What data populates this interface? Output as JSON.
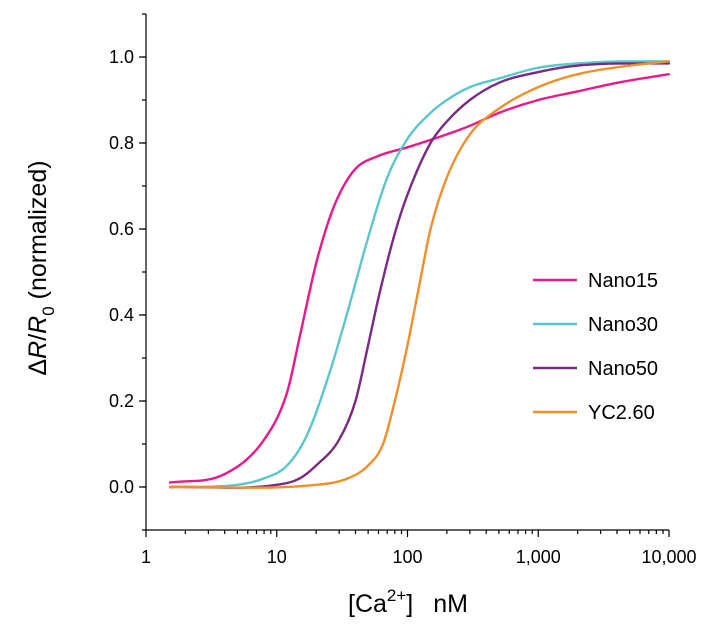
{
  "chart_data": {
    "type": "line",
    "title": "",
    "xscale": "log",
    "xlim": [
      1,
      10000
    ],
    "ylim": [
      -0.1,
      1.1
    ],
    "x_ticks": [
      {
        "value": 1,
        "label": "1"
      },
      {
        "value": 10,
        "label": "10"
      },
      {
        "value": 100,
        "label": "100"
      },
      {
        "value": 1000,
        "label": "1,000"
      },
      {
        "value": 10000,
        "label": "10,000"
      }
    ],
    "y_ticks": [
      {
        "value": 0.0,
        "label": "0.0"
      },
      {
        "value": 0.2,
        "label": "0.2"
      },
      {
        "value": 0.4,
        "label": "0.4"
      },
      {
        "value": 0.6,
        "label": "0.6"
      },
      {
        "value": 0.8,
        "label": "0.8"
      },
      {
        "value": 1.0,
        "label": "1.0"
      }
    ],
    "xlabel": {
      "main": "[Ca",
      "sup": "2+",
      "tail": "]",
      "unit": "nM"
    },
    "ylabel": {
      "delta": "Δ",
      "r1": "R",
      "slash": "/",
      "r2": "R",
      "sub": "0",
      "tail": " (normalized)"
    },
    "legend_position": "right",
    "grid": false,
    "series": [
      {
        "name": "Nano15",
        "color": "#e8198b",
        "points": [
          [
            1.5,
            0.01
          ],
          [
            4,
            0.03
          ],
          [
            8,
            0.11
          ],
          [
            12,
            0.22
          ],
          [
            15,
            0.35
          ],
          [
            20,
            0.52
          ],
          [
            25,
            0.62
          ],
          [
            30,
            0.68
          ],
          [
            40,
            0.74
          ],
          [
            60,
            0.77
          ],
          [
            100,
            0.79
          ],
          [
            200,
            0.82
          ],
          [
            300,
            0.84
          ],
          [
            500,
            0.87
          ],
          [
            1000,
            0.9
          ],
          [
            2000,
            0.92
          ],
          [
            4000,
            0.94
          ],
          [
            10000,
            0.96
          ]
        ]
      },
      {
        "name": "Nano30",
        "color": "#5bc7c9",
        "points": [
          [
            1.5,
            0.0
          ],
          [
            5,
            0.005
          ],
          [
            8,
            0.02
          ],
          [
            12,
            0.05
          ],
          [
            17,
            0.12
          ],
          [
            25,
            0.26
          ],
          [
            35,
            0.41
          ],
          [
            50,
            0.58
          ],
          [
            70,
            0.72
          ],
          [
            100,
            0.81
          ],
          [
            150,
            0.87
          ],
          [
            200,
            0.9
          ],
          [
            300,
            0.93
          ],
          [
            500,
            0.95
          ],
          [
            1000,
            0.975
          ],
          [
            2000,
            0.985
          ],
          [
            5000,
            0.99
          ],
          [
            10000,
            0.99
          ]
        ]
      },
      {
        "name": "Nano50",
        "color": "#7b2a84",
        "points": [
          [
            1.5,
            0.0
          ],
          [
            10,
            0.005
          ],
          [
            15,
            0.02
          ],
          [
            20,
            0.05
          ],
          [
            30,
            0.11
          ],
          [
            40,
            0.2
          ],
          [
            50,
            0.33
          ],
          [
            60,
            0.44
          ],
          [
            80,
            0.59
          ],
          [
            100,
            0.68
          ],
          [
            150,
            0.8
          ],
          [
            200,
            0.85
          ],
          [
            300,
            0.9
          ],
          [
            500,
            0.94
          ],
          [
            1000,
            0.965
          ],
          [
            2000,
            0.98
          ],
          [
            5000,
            0.985
          ],
          [
            10000,
            0.985
          ]
        ]
      },
      {
        "name": "YC2.60",
        "color": "#f0902a",
        "points": [
          [
            1.5,
            0.0
          ],
          [
            20,
            0.005
          ],
          [
            35,
            0.02
          ],
          [
            50,
            0.05
          ],
          [
            65,
            0.1
          ],
          [
            80,
            0.2
          ],
          [
            100,
            0.33
          ],
          [
            125,
            0.48
          ],
          [
            150,
            0.6
          ],
          [
            200,
            0.72
          ],
          [
            300,
            0.82
          ],
          [
            500,
            0.88
          ],
          [
            1000,
            0.93
          ],
          [
            2000,
            0.96
          ],
          [
            5000,
            0.98
          ],
          [
            10000,
            0.99
          ]
        ]
      }
    ]
  }
}
